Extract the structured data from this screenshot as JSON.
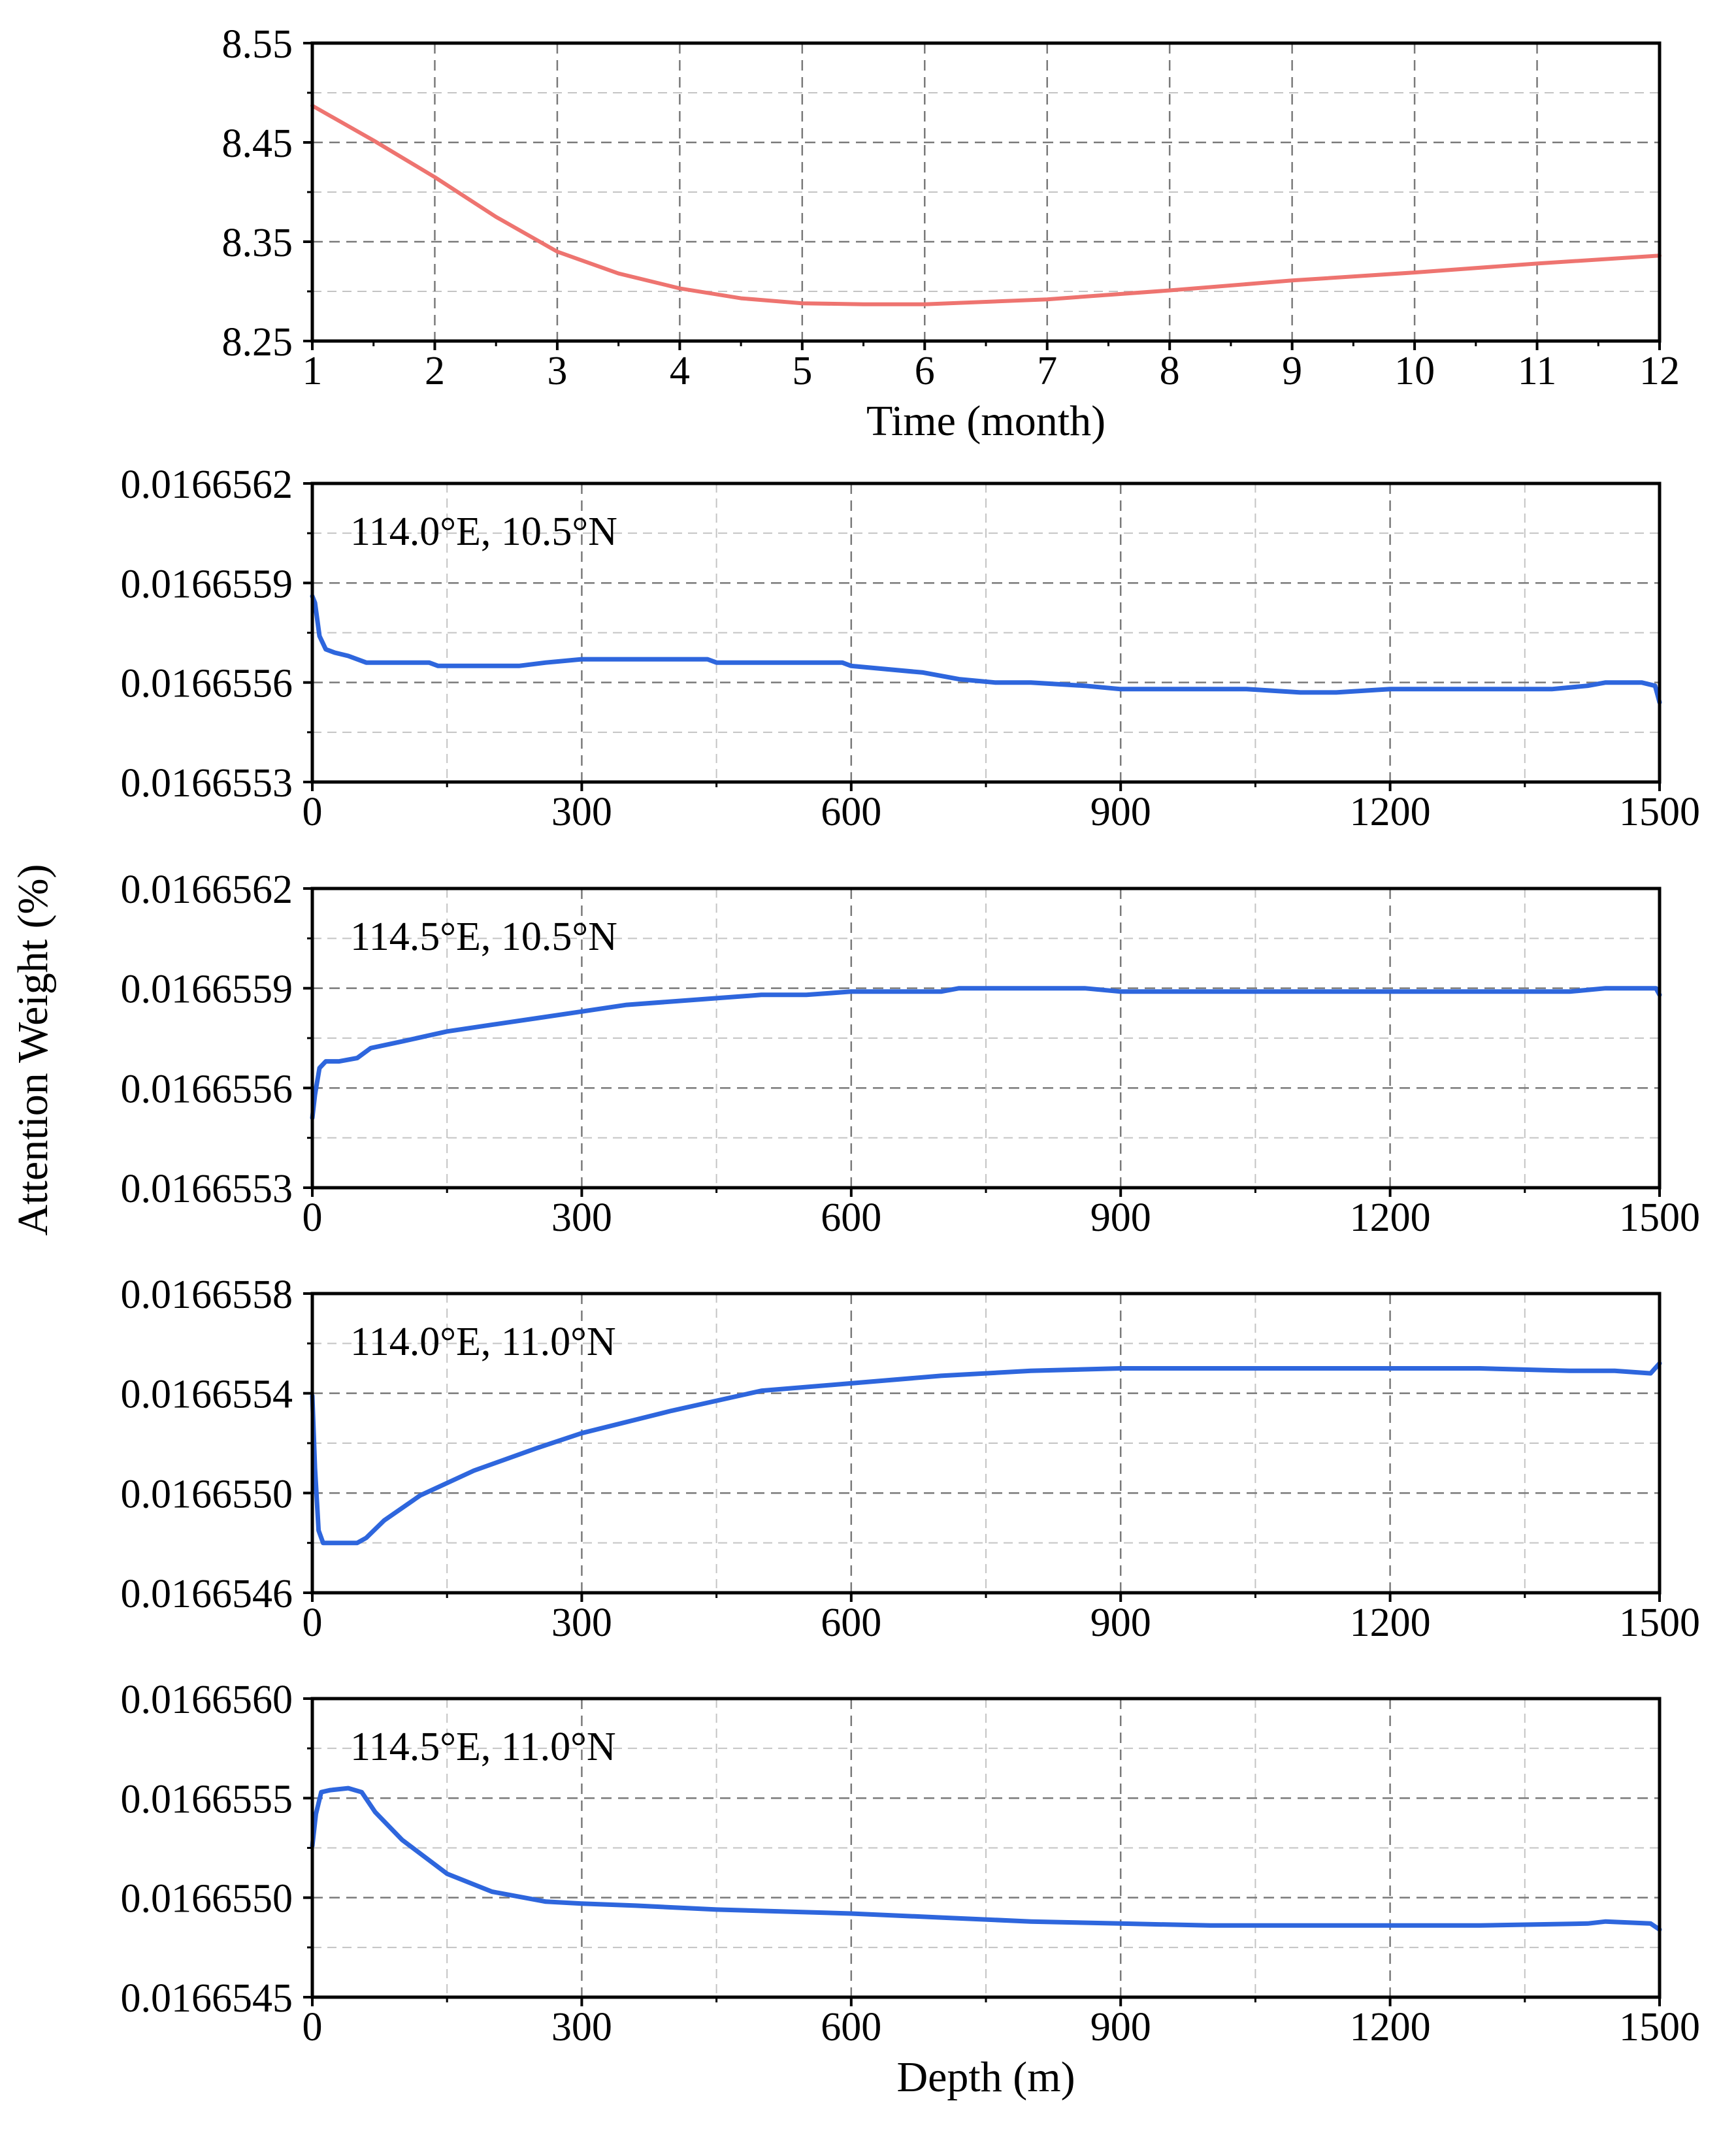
{
  "figure": {
    "shared_ylabel": "Attention Weight (%)",
    "colors": {
      "top_series": "#EE7470",
      "depth_series": "#2E66DD",
      "grid": "#7a7a7a",
      "minor_grid": "#c4c4c4",
      "axis": "#000000"
    }
  },
  "chart_data": [
    {
      "type": "line",
      "xlabel": "Time (month)",
      "ylabel": "",
      "xlim": [
        1,
        12
      ],
      "ylim": [
        8.25,
        8.55
      ],
      "xticks": [
        1,
        2,
        3,
        4,
        5,
        6,
        7,
        8,
        9,
        10,
        11,
        12
      ],
      "xtick_labels": [
        "1",
        "2",
        "3",
        "4",
        "5",
        "6",
        "7",
        "8",
        "9",
        "10",
        "11",
        "12"
      ],
      "yticks": [
        8.25,
        8.35,
        8.45,
        8.55
      ],
      "ytick_labels": [
        "8.25",
        "8.35",
        "8.45",
        "8.55"
      ],
      "color": "#EE7470",
      "annotation": "",
      "x": [
        1,
        1.5,
        2,
        2.5,
        3,
        3.5,
        4,
        4.5,
        5,
        5.5,
        6,
        7,
        8,
        9,
        10,
        11,
        12
      ],
      "y": [
        8.487,
        8.452,
        8.415,
        8.375,
        8.34,
        8.318,
        8.303,
        8.293,
        8.288,
        8.287,
        8.287,
        8.292,
        8.301,
        8.311,
        8.319,
        8.328,
        8.336
      ]
    },
    {
      "type": "line",
      "annotation": "114.0°E, 10.5°N",
      "xlabel": "",
      "xlim": [
        0,
        1500
      ],
      "ylim": [
        0.0166553,
        0.0166562
      ],
      "xticks": [
        0,
        300,
        600,
        900,
        1200,
        1500
      ],
      "xtick_labels": [
        "0",
        "300",
        "600",
        "900",
        "1200",
        "1500"
      ],
      "yticks": [
        0.0166553,
        0.0166556,
        0.0166559,
        0.0166562
      ],
      "ytick_labels": [
        "0.0166553",
        "0.0166556",
        "0.0166559",
        "0.0166562"
      ],
      "color": "#2E66DD",
      "x": [
        0,
        3,
        8,
        15,
        25,
        40,
        60,
        100,
        130,
        140,
        200,
        230,
        260,
        300,
        350,
        400,
        440,
        450,
        500,
        550,
        590,
        600,
        640,
        680,
        720,
        760,
        800,
        860,
        900,
        960,
        1040,
        1100,
        1140,
        1200,
        1300,
        1380,
        1420,
        1440,
        1480,
        1495,
        1498,
        1500
      ],
      "y": [
        0.01665586,
        0.01665584,
        0.01665574,
        0.0166557,
        0.01665569,
        0.01665568,
        0.01665566,
        0.01665566,
        0.01665566,
        0.01665565,
        0.01665565,
        0.01665565,
        0.01665566,
        0.01665567,
        0.01665567,
        0.01665567,
        0.01665567,
        0.01665566,
        0.01665566,
        0.01665566,
        0.01665566,
        0.01665565,
        0.01665564,
        0.01665563,
        0.01665561,
        0.0166556,
        0.0166556,
        0.01665559,
        0.01665558,
        0.01665558,
        0.01665558,
        0.01665557,
        0.01665557,
        0.01665558,
        0.01665558,
        0.01665558,
        0.01665559,
        0.0166556,
        0.0166556,
        0.01665559,
        0.01665556,
        0.01665554
      ]
    },
    {
      "type": "line",
      "annotation": "114.5°E, 10.5°N",
      "xlabel": "",
      "xlim": [
        0,
        1500
      ],
      "ylim": [
        0.0166553,
        0.0166562
      ],
      "xticks": [
        0,
        300,
        600,
        900,
        1200,
        1500
      ],
      "xtick_labels": [
        "0",
        "300",
        "600",
        "900",
        "1200",
        "1500"
      ],
      "yticks": [
        0.0166553,
        0.0166556,
        0.0166559,
        0.0166562
      ],
      "ytick_labels": [
        "0.0166553",
        "0.0166556",
        "0.0166559",
        "0.0166562"
      ],
      "color": "#2E66DD",
      "x": [
        0,
        3,
        8,
        15,
        30,
        50,
        65,
        100,
        150,
        200,
        250,
        300,
        350,
        400,
        450,
        500,
        550,
        600,
        700,
        720,
        860,
        900,
        1000,
        1200,
        1400,
        1440,
        1480,
        1496,
        1500
      ],
      "y": [
        0.01665551,
        0.01665558,
        0.01665566,
        0.01665568,
        0.01665568,
        0.01665569,
        0.01665572,
        0.01665574,
        0.01665577,
        0.01665579,
        0.01665581,
        0.01665583,
        0.01665585,
        0.01665586,
        0.01665587,
        0.01665588,
        0.01665588,
        0.01665589,
        0.01665589,
        0.0166559,
        0.0166559,
        0.01665589,
        0.01665589,
        0.01665589,
        0.01665589,
        0.0166559,
        0.0166559,
        0.0166559,
        0.01665588
      ]
    },
    {
      "type": "line",
      "annotation": "114.0°E, 11.0°N",
      "xlabel": "",
      "xlim": [
        0,
        1500
      ],
      "ylim": [
        0.0166546,
        0.0166558
      ],
      "xticks": [
        0,
        300,
        600,
        900,
        1200,
        1500
      ],
      "xtick_labels": [
        "0",
        "300",
        "600",
        "900",
        "1200",
        "1500"
      ],
      "yticks": [
        0.0166546,
        0.016655,
        0.0166554,
        0.0166558
      ],
      "ytick_labels": [
        "0.0166546",
        "0.0166550",
        "0.0166554",
        "0.0166558"
      ],
      "color": "#2E66DD",
      "x": [
        0,
        3,
        7,
        12,
        30,
        50,
        60,
        80,
        120,
        180,
        250,
        300,
        400,
        500,
        600,
        700,
        800,
        900,
        1000,
        1100,
        1200,
        1300,
        1400,
        1450,
        1490,
        1500
      ],
      "y": [
        0.01665539,
        0.0166551,
        0.01665485,
        0.0166548,
        0.0166548,
        0.0166548,
        0.01665482,
        0.01665489,
        0.01665499,
        0.01665509,
        0.01665518,
        0.01665524,
        0.01665533,
        0.01665541,
        0.01665544,
        0.01665547,
        0.01665549,
        0.0166555,
        0.0166555,
        0.0166555,
        0.0166555,
        0.0166555,
        0.01665549,
        0.01665549,
        0.01665548,
        0.01665552
      ]
    },
    {
      "type": "line",
      "annotation": "114.5°E, 11.0°N",
      "xlabel": "Depth (m)",
      "xlim": [
        0,
        1500
      ],
      "ylim": [
        0.0166545,
        0.016656
      ],
      "xticks": [
        0,
        300,
        600,
        900,
        1200,
        1500
      ],
      "xtick_labels": [
        "0",
        "300",
        "600",
        "900",
        "1200",
        "1500"
      ],
      "yticks": [
        0.0166545,
        0.016655,
        0.0166555,
        0.016656
      ],
      "ytick_labels": [
        "0.0166545",
        "0.0166550",
        "0.0166555",
        "0.0166560"
      ],
      "color": "#2E66DD",
      "x": [
        0,
        4,
        10,
        20,
        40,
        55,
        70,
        100,
        150,
        200,
        260,
        300,
        360,
        450,
        600,
        700,
        800,
        900,
        1000,
        1200,
        1300,
        1420,
        1440,
        1490,
        1500
      ],
      "y": [
        0.01665526,
        0.01665542,
        0.01665553,
        0.01665554,
        0.01665555,
        0.01665553,
        0.01665543,
        0.01665529,
        0.01665512,
        0.01665503,
        0.01665498,
        0.01665497,
        0.01665496,
        0.01665494,
        0.01665492,
        0.0166549,
        0.01665488,
        0.01665487,
        0.01665486,
        0.01665486,
        0.01665486,
        0.01665487,
        0.01665488,
        0.01665487,
        0.01665484
      ]
    }
  ]
}
